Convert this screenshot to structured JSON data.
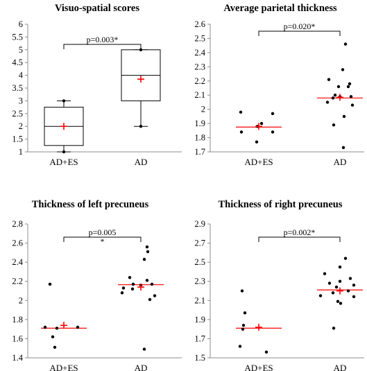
{
  "chart_data": [
    {
      "type": "box",
      "title": "Visuo-spatial scores",
      "categories": [
        "AD+ES",
        "AD"
      ],
      "ylim": [
        1,
        6
      ],
      "yticks": [
        "1",
        "1.5",
        "2",
        "2.5",
        "3",
        "3.5",
        "4",
        "4.5",
        "5",
        "5.5",
        "6"
      ],
      "boxes": [
        {
          "category": "AD+ES",
          "whisker_low": 1,
          "q1": 1.25,
          "median": 2,
          "q3": 2.75,
          "whisker_high": 3,
          "mean": 2
        },
        {
          "category": "AD",
          "whisker_low": 2,
          "q1": 3,
          "median": 4,
          "q3": 5,
          "whisker_high": 5,
          "mean": 3.85
        }
      ],
      "points": [
        {
          "category": "AD+ES",
          "y": 3
        },
        {
          "category": "AD+ES",
          "y": 1
        },
        {
          "category": "AD",
          "y": 5
        },
        {
          "category": "AD",
          "y": 2
        }
      ],
      "significance": "p=0.003*",
      "grid": false
    },
    {
      "type": "scatter",
      "title": "Average parietal thickness",
      "categories": [
        "AD+ES",
        "AD"
      ],
      "ylim": [
        1.7,
        2.6
      ],
      "yticks": [
        "1.7",
        "1.8",
        "1.9",
        "2",
        "2.1",
        "2.2",
        "2.3",
        "2.4",
        "2.5",
        "2.6"
      ],
      "series": [
        {
          "category": "AD+ES",
          "values": [
            1.98,
            1.84,
            1.9,
            1.88,
            1.77,
            1.84,
            1.97
          ],
          "median": 1.875,
          "mean": 1.88
        },
        {
          "category": "AD",
          "values": [
            2.46,
            2.28,
            2.21,
            2.16,
            2.18,
            2.16,
            2.1,
            2.09,
            2.09,
            2.08,
            2.05,
            2.03,
            1.95,
            1.89,
            1.73
          ],
          "median": 2.08,
          "mean": 2.085
        }
      ],
      "significance": "p=0.020*",
      "grid": false
    },
    {
      "type": "scatter",
      "title": "Thickness of left precuneus",
      "categories": [
        "AD+ES",
        "AD"
      ],
      "ylim": [
        1.4,
        2.8
      ],
      "yticks": [
        "1.4",
        "1.6",
        "1.8",
        "2",
        "2.2",
        "2.4",
        "2.6",
        "2.8"
      ],
      "series": [
        {
          "category": "AD+ES",
          "values": [
            2.17,
            1.72,
            1.72,
            1.71,
            1.62,
            1.51
          ],
          "median": 1.71,
          "mean": 1.74
        },
        {
          "category": "AD",
          "values": [
            2.56,
            2.51,
            2.43,
            2.24,
            2.21,
            2.17,
            2.17,
            2.16,
            2.13,
            2.12,
            2.08,
            2.05,
            2.01,
            1.49
          ],
          "median": 2.165,
          "mean": 2.14
        }
      ],
      "significance": "p=0.005",
      "significance_mark": "*",
      "grid": false
    },
    {
      "type": "scatter",
      "title": "Thickness of right precuneus",
      "categories": [
        "AD+ES",
        "AD"
      ],
      "ylim": [
        1.5,
        2.9
      ],
      "yticks": [
        "1.5",
        "1.7",
        "1.9",
        "2.1",
        "2.3",
        "2.5",
        "2.7",
        "2.9"
      ],
      "series": [
        {
          "category": "AD+ES",
          "values": [
            2.2,
            1.97,
            1.84,
            1.8,
            1.62,
            1.56
          ],
          "median": 1.81,
          "mean": 1.82
        },
        {
          "category": "AD",
          "values": [
            2.54,
            2.45,
            2.38,
            2.33,
            2.3,
            2.28,
            2.26,
            2.24,
            2.2,
            2.18,
            2.15,
            2.14,
            2.09,
            2.07,
            1.81
          ],
          "median": 2.21,
          "mean": 2.2
        },
        {
          "category": "AD",
          "values": [],
          "note": ""
        }
      ],
      "significance": "p=0.002*",
      "grid": false
    }
  ],
  "colors": {
    "marker": "#000000",
    "mean_marker": "#ff0000",
    "median_line": "#ff0000",
    "axis": "#8c8c8c"
  }
}
